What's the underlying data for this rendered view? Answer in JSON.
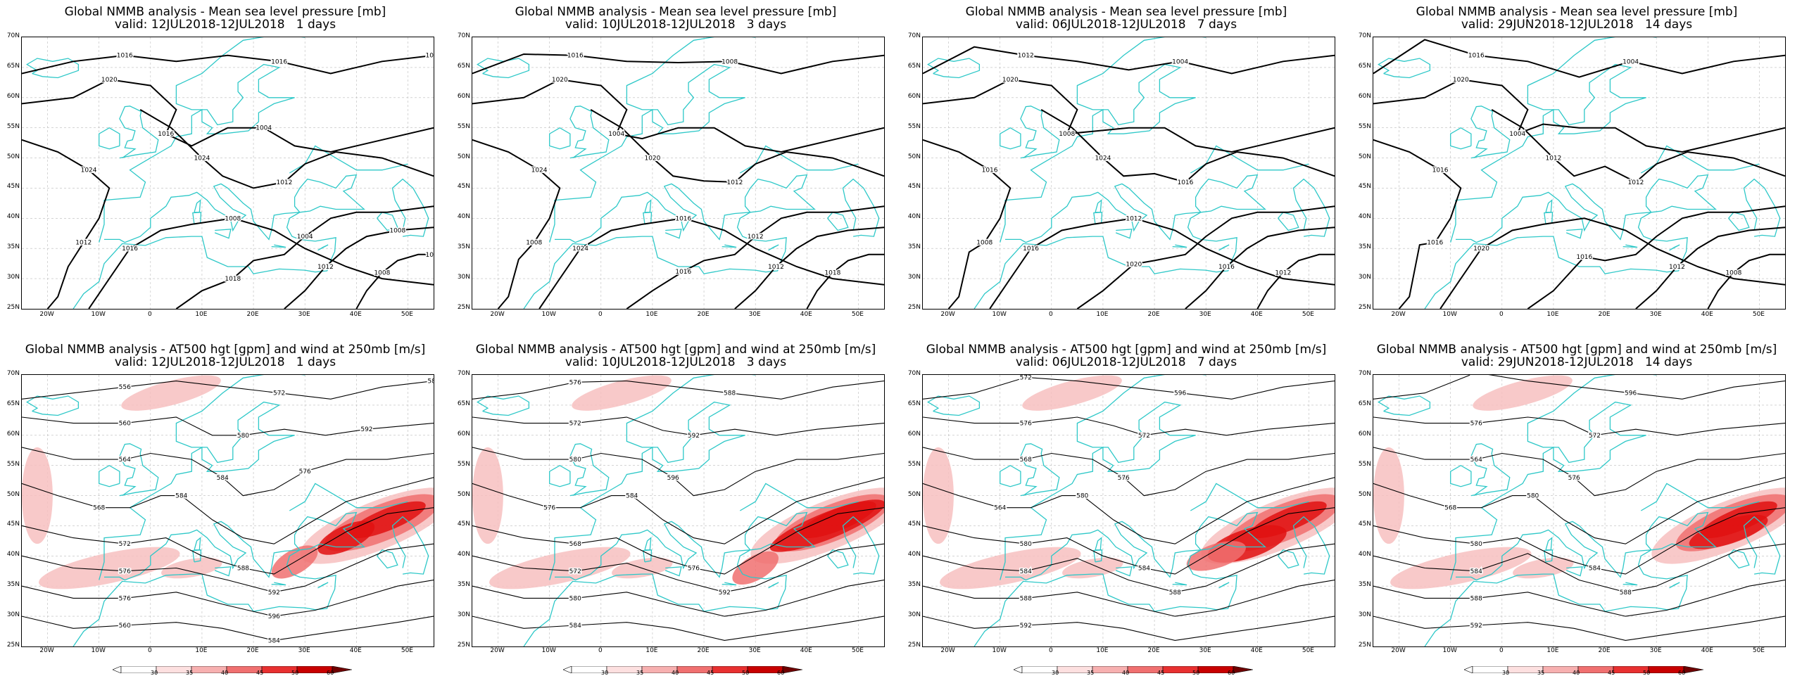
{
  "lon_ticks": [
    "20W",
    "10W",
    "0",
    "10E",
    "20E",
    "30E",
    "40E",
    "50E"
  ],
  "lat_ticks": [
    "70N",
    "65N",
    "60N",
    "55N",
    "50N",
    "45N",
    "40N",
    "35N",
    "30N",
    "25N"
  ],
  "colorbar_ticks": [
    "30",
    "35",
    "40",
    "45",
    "50",
    "60"
  ],
  "colors": {
    "coast": "#2ec8c8",
    "contour": "#000000",
    "wind_light": "#f7c0c0",
    "wind_mid": "#f07070",
    "wind_dark": "#e01010"
  },
  "rows": [
    {
      "title_line": "Global NMMB analysis - Mean sea level pressure [mb]",
      "panels": [
        {
          "valid": "valid: 12JUL2018-12JUL2018   1 days",
          "contour_labels": [
            "1016",
            "1020",
            "1024",
            "1024",
            "1016",
            "1018",
            "1012",
            "1008",
            "1016",
            "1016",
            "1012",
            "1012",
            "1008",
            "1004",
            "1008",
            "1016",
            "1012",
            "1004"
          ]
        },
        {
          "valid": "valid: 10JUL2018-12JUL2018   3 days",
          "contour_labels": [
            "1016",
            "1020",
            "1024",
            "1020",
            "1024",
            "1016",
            "1012",
            "1018",
            "1008",
            "1004",
            "1008",
            "1012",
            "1016",
            "1012"
          ]
        },
        {
          "valid": "valid: 06JUL2018-12JUL2018   7 days",
          "contour_labels": [
            "1012",
            "1020",
            "1016",
            "1024",
            "1016",
            "1020",
            "1016",
            "1012",
            "1004",
            "1008",
            "1008",
            "1016",
            "1012"
          ]
        },
        {
          "valid": "valid: 29JUN2018-12JUL2018   14 days",
          "contour_labels": [
            "1016",
            "1020",
            "1016",
            "1012",
            "1020",
            "1016",
            "1012",
            "1008",
            "1004",
            "1004",
            "1016",
            "1012"
          ]
        }
      ]
    },
    {
      "title_line": "Global NMMB analysis - AT500 hgt [gpm] and wind at 250mb [m/s]",
      "panels": [
        {
          "valid": "valid: 12JUL2018-12JUL2018   1 days",
          "contour_labels": [
            "556",
            "560",
            "564",
            "568",
            "572",
            "576",
            "576",
            "560",
            "572",
            "580",
            "584",
            "584",
            "588",
            "592",
            "596",
            "584",
            "588",
            "592",
            "576"
          ]
        },
        {
          "valid": "valid: 10JUL2018-12JUL2018   3 days",
          "contour_labels": [
            "576",
            "572",
            "580",
            "576",
            "568",
            "572",
            "580",
            "584",
            "588",
            "592",
            "596",
            "584",
            "576",
            "592"
          ]
        },
        {
          "valid": "valid: 06JUL2018-12JUL2018   7 days",
          "contour_labels": [
            "572",
            "576",
            "568",
            "564",
            "580",
            "584",
            "588",
            "592",
            "596",
            "572",
            "576",
            "580",
            "584",
            "588"
          ]
        },
        {
          "valid": "valid: 29JUN2018-12JUL2018   14 days",
          "contour_labels": [
            "572",
            "576",
            "564",
            "568",
            "580",
            "584",
            "588",
            "592",
            "596",
            "572",
            "576",
            "580",
            "584",
            "588"
          ]
        }
      ]
    }
  ]
}
